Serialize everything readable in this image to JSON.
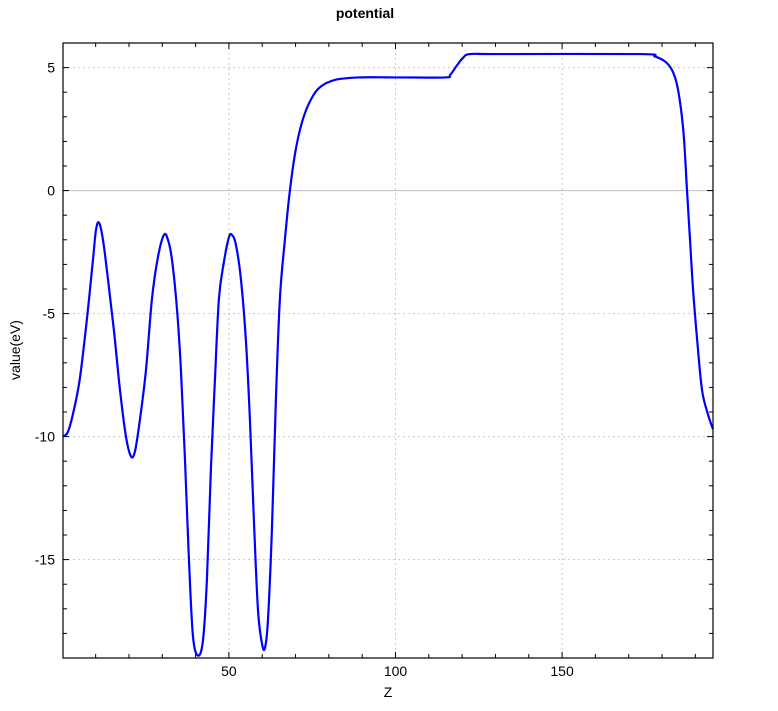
{
  "chart_data": {
    "type": "line",
    "title": "potential",
    "xlabel": "Z",
    "ylabel": "value(eV)",
    "xlim": [
      0.2,
      195.3
    ],
    "ylim": [
      -19.0,
      6.0
    ],
    "xticks": [
      50,
      100,
      150
    ],
    "yticks": [
      5,
      0,
      -5,
      -10,
      -15
    ],
    "xtick_labels": [
      "50",
      "100",
      "150"
    ],
    "ytick_labels": [
      "5",
      "0",
      "-5",
      "-10",
      "-15"
    ],
    "x_minor_step": 10,
    "y_minor_step": 1,
    "grid": true,
    "line_color": "#0000ff",
    "zero_line_color": "#c0c0c0",
    "series": [
      {
        "x": [
          0.2,
          1.7,
          3.5,
          5.3,
          7.4,
          9.2,
          10.1,
          11,
          12.2,
          13.7,
          15.5,
          17.3,
          19.1,
          20.6,
          21.8,
          23.3,
          25.1,
          26.9,
          28.7,
          30.5,
          31.7,
          32.9,
          34.4,
          35.6,
          36.8,
          38,
          39.2,
          40.7,
          42.2,
          43.4,
          44.6,
          45.8,
          47,
          48.5,
          50,
          50.9,
          52.1,
          53.6,
          55.1,
          56.3,
          57.5,
          58.7,
          59.9,
          60.8,
          61.7,
          62.9,
          64.1,
          65.3,
          66.8,
          68.3,
          70.1,
          72.2,
          74.6,
          77.3,
          81.8,
          89.3,
          101.3,
          114.9,
          116.4,
          118.5,
          120.3,
          122.4,
          131.4,
          173.4,
          177.9,
          180.9,
          183,
          184.5,
          185.7,
          186.6,
          187.5,
          188.4,
          189.3,
          190.5,
          192,
          193.8,
          195.3
        ],
        "y": [
          -10,
          -9.8,
          -8.9,
          -7.6,
          -5.2,
          -2.8,
          -1.6,
          -1.3,
          -2,
          -3.6,
          -5.7,
          -8.1,
          -10,
          -10.8,
          -10.6,
          -9.3,
          -7.3,
          -4.4,
          -2.7,
          -1.8,
          -2,
          -2.8,
          -4.8,
          -7.3,
          -10.9,
          -15,
          -18.1,
          -18.9,
          -18.3,
          -15.8,
          -11.3,
          -7.7,
          -4.4,
          -2.9,
          -1.9,
          -1.8,
          -2.2,
          -3.6,
          -6.1,
          -9.3,
          -13.4,
          -17,
          -18.4,
          -18.6,
          -17.5,
          -13.8,
          -8.5,
          -4.4,
          -2,
          0,
          1.7,
          2.9,
          3.7,
          4.2,
          4.5,
          4.6,
          4.6,
          4.6,
          4.7,
          5.1,
          5.4,
          5.55,
          5.55,
          5.55,
          5.45,
          5.25,
          4.9,
          4.3,
          3.3,
          2.1,
          0,
          -2,
          -4,
          -6,
          -8.1,
          -9.1,
          -9.7
        ]
      }
    ]
  }
}
